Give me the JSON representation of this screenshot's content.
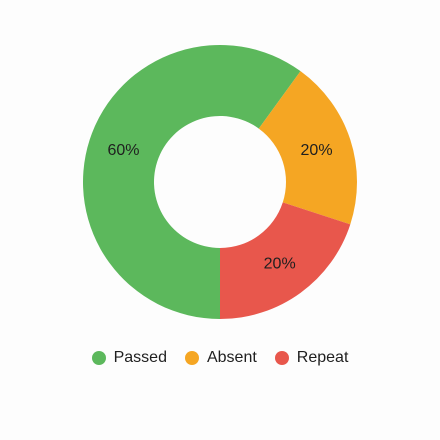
{
  "chart_data": {
    "type": "pie",
    "variant": "donut",
    "title": "",
    "categories": [
      "Passed",
      "Absent",
      "Repeat"
    ],
    "values": [
      60,
      20,
      20
    ],
    "labels": [
      "60%",
      "20%",
      "20%"
    ],
    "colors": [
      "#5cb85c",
      "#f5a623",
      "#e8574c"
    ],
    "legend": {
      "position": "bottom",
      "entries": [
        {
          "name": "Passed",
          "color": "#5cb85c"
        },
        {
          "name": "Absent",
          "color": "#f5a623"
        },
        {
          "name": "Repeat",
          "color": "#e8574c"
        }
      ]
    }
  }
}
